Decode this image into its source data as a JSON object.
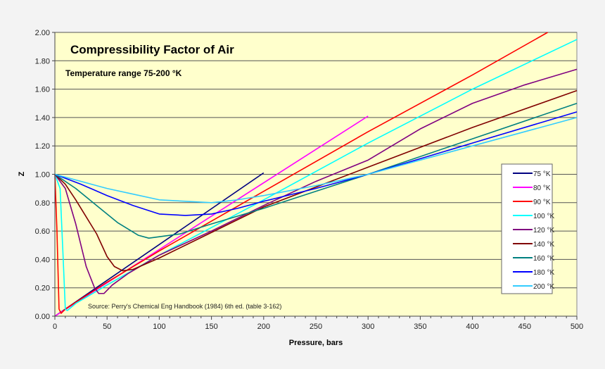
{
  "chart_data": {
    "type": "line",
    "title": "Compressibility Factor of Air",
    "subtitle": "Temperature range 75-200 °K",
    "xlabel": "Pressure, bars",
    "ylabel": "Z",
    "annotation": "Source: Perry's Chemical Eng Handbook (1984) 6th ed.  (table 3-162)",
    "xlim": [
      0,
      500
    ],
    "ylim": [
      0,
      2.0
    ],
    "xticks": [
      "0",
      "50",
      "100",
      "150",
      "200",
      "250",
      "300",
      "350",
      "400",
      "450",
      "500"
    ],
    "yticks": [
      "0.00",
      "0.20",
      "0.40",
      "0.60",
      "0.80",
      "1.00",
      "1.20",
      "1.40",
      "1.60",
      "1.80",
      "2.00"
    ],
    "grid": "horizontal",
    "legend_position": "right",
    "background": "#FFFFCC",
    "series": [
      {
        "name": "75 °K",
        "color": "#000080",
        "points": [
          [
            0,
            0
          ],
          [
            200,
            1.01
          ]
        ]
      },
      {
        "name": "80 °K",
        "color": "#FF00FF",
        "points": [
          [
            0,
            0
          ],
          [
            300,
            1.41
          ]
        ]
      },
      {
        "name": "90 °K",
        "color": "#FF0000",
        "points": [
          [
            0,
            1
          ],
          [
            2,
            0.6
          ],
          [
            4,
            0.05
          ],
          [
            6,
            0.02
          ],
          [
            10,
            0.05
          ],
          [
            50,
            0.24
          ],
          [
            100,
            0.46
          ],
          [
            200,
            0.88
          ],
          [
            300,
            1.3
          ],
          [
            400,
            1.7
          ],
          [
            472,
            2.0
          ]
        ]
      },
      {
        "name": "100 °K",
        "color": "#00FFFF",
        "points": [
          [
            0,
            1
          ],
          [
            5,
            0.9
          ],
          [
            8,
            0.4
          ],
          [
            10,
            0.05
          ],
          [
            12,
            0.04
          ],
          [
            20,
            0.09
          ],
          [
            50,
            0.22
          ],
          [
            100,
            0.43
          ],
          [
            200,
            0.82
          ],
          [
            300,
            1.22
          ],
          [
            400,
            1.6
          ],
          [
            500,
            1.95
          ]
        ]
      },
      {
        "name": "120 °K",
        "color": "#800080",
        "points": [
          [
            0,
            1
          ],
          [
            10,
            0.9
          ],
          [
            20,
            0.65
          ],
          [
            30,
            0.35
          ],
          [
            38,
            0.2
          ],
          [
            42,
            0.16
          ],
          [
            47,
            0.16
          ],
          [
            55,
            0.22
          ],
          [
            70,
            0.3
          ],
          [
            100,
            0.43
          ],
          [
            150,
            0.6
          ],
          [
            200,
            0.78
          ],
          [
            250,
            0.95
          ],
          [
            300,
            1.1
          ],
          [
            350,
            1.32
          ],
          [
            400,
            1.5
          ],
          [
            450,
            1.63
          ],
          [
            500,
            1.74
          ]
        ]
      },
      {
        "name": "140 °K",
        "color": "#800000",
        "points": [
          [
            0,
            1
          ],
          [
            10,
            0.93
          ],
          [
            20,
            0.82
          ],
          [
            30,
            0.7
          ],
          [
            40,
            0.58
          ],
          [
            50,
            0.42
          ],
          [
            57,
            0.35
          ],
          [
            65,
            0.32
          ],
          [
            75,
            0.33
          ],
          [
            100,
            0.41
          ],
          [
            150,
            0.59
          ],
          [
            200,
            0.77
          ],
          [
            300,
            1.05
          ],
          [
            400,
            1.33
          ],
          [
            500,
            1.59
          ]
        ]
      },
      {
        "name": "160 °K",
        "color": "#008080",
        "points": [
          [
            0,
            1
          ],
          [
            20,
            0.9
          ],
          [
            40,
            0.78
          ],
          [
            60,
            0.66
          ],
          [
            80,
            0.57
          ],
          [
            90,
            0.55
          ],
          [
            100,
            0.56
          ],
          [
            120,
            0.58
          ],
          [
            150,
            0.65
          ],
          [
            200,
            0.76
          ],
          [
            300,
            1.0
          ],
          [
            400,
            1.25
          ],
          [
            500,
            1.5
          ]
        ]
      },
      {
        "name": "180 °K",
        "color": "#0000FF",
        "points": [
          [
            0,
            1
          ],
          [
            25,
            0.93
          ],
          [
            50,
            0.85
          ],
          [
            75,
            0.78
          ],
          [
            100,
            0.72
          ],
          [
            125,
            0.71
          ],
          [
            150,
            0.72
          ],
          [
            175,
            0.76
          ],
          [
            200,
            0.81
          ],
          [
            250,
            0.9
          ],
          [
            300,
            1.0
          ],
          [
            400,
            1.22
          ],
          [
            500,
            1.44
          ]
        ]
      },
      {
        "name": "200 °K",
        "color": "#33CCFF",
        "points": [
          [
            0,
            1
          ],
          [
            25,
            0.95
          ],
          [
            50,
            0.9
          ],
          [
            75,
            0.86
          ],
          [
            100,
            0.82
          ],
          [
            125,
            0.81
          ],
          [
            150,
            0.8
          ],
          [
            175,
            0.82
          ],
          [
            200,
            0.85
          ],
          [
            250,
            0.92
          ],
          [
            300,
            1.0
          ],
          [
            400,
            1.2
          ],
          [
            500,
            1.4
          ]
        ]
      }
    ]
  }
}
